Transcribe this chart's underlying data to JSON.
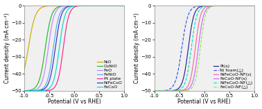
{
  "left_curves": [
    {
      "label": "NiO",
      "color": "#ccaa00",
      "onset": -0.92,
      "steepness": 14.0
    },
    {
      "label": "CoNiO",
      "color": "#22bb22",
      "onset": -0.58,
      "steepness": 16.0
    },
    {
      "label": "FeO",
      "color": "#bb88ff",
      "onset": -0.52,
      "steepness": 17.0
    },
    {
      "label": "FeNiO",
      "color": "#55aaff",
      "onset": -0.42,
      "steepness": 17.0
    },
    {
      "label": "Pt plate",
      "color": "#ff2288",
      "onset": -0.22,
      "steepness": 18.0
    },
    {
      "label": "NiFeCoO",
      "color": "#3333bb",
      "onset": -0.38,
      "steepness": 17.0
    },
    {
      "label": "FeCoO",
      "color": "#00ddcc",
      "onset": -0.3,
      "steepness": 17.5
    }
  ],
  "right_curves": [
    {
      "label": "Pt(s)",
      "color": "#222299",
      "onset": -0.32,
      "steepness": 18.0,
      "linestyle": "-"
    },
    {
      "label": "Ni foam(△)",
      "color": "#3355ee",
      "onset": -0.45,
      "steepness": 16.0,
      "linestyle": "--"
    },
    {
      "label": "NiFeCoO-NF(s)",
      "color": "#ff6699",
      "onset": -0.18,
      "steepness": 19.0,
      "linestyle": "-"
    },
    {
      "label": "FeCoO-NF(s)",
      "color": "#cc66ff",
      "onset": -0.12,
      "steepness": 19.0,
      "linestyle": "-"
    },
    {
      "label": "NiFeCoO-NF(△)",
      "color": "#00ddbb",
      "onset": -0.26,
      "steepness": 18.0,
      "linestyle": "--"
    },
    {
      "label": "FeCoO-NF(△)",
      "color": "#88ee44",
      "onset": -0.08,
      "steepness": 19.5,
      "linestyle": "--"
    }
  ],
  "xlim": [
    -1.0,
    1.0
  ],
  "ylim": [
    -50,
    0
  ],
  "xticks": [
    -1.0,
    -0.5,
    0.0,
    0.5,
    1.0
  ],
  "yticks": [
    -50,
    -40,
    -30,
    -20,
    -10,
    0
  ],
  "xlabel": "Potential (V vs RHE)",
  "ylabel": "Current density (mA cm⁻²)",
  "bg_color": "#ffffff",
  "plot_bg": "#f0f0f0",
  "legend_fontsize": 4.5,
  "tick_fontsize": 5.0,
  "label_fontsize": 5.5
}
